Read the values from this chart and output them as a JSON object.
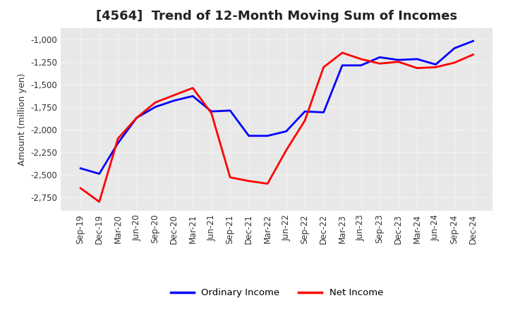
{
  "title": "[4564]  Trend of 12-Month Moving Sum of Incomes",
  "ylabel": "Amount (million yen)",
  "x_labels": [
    "Sep-19",
    "Dec-19",
    "Mar-20",
    "Jun-20",
    "Sep-20",
    "Dec-20",
    "Mar-21",
    "Jun-21",
    "Sep-21",
    "Dec-21",
    "Mar-22",
    "Jun-22",
    "Sep-22",
    "Dec-22",
    "Mar-23",
    "Jun-23",
    "Sep-23",
    "Dec-23",
    "Mar-24",
    "Jun-24",
    "Sep-24",
    "Dec-24"
  ],
  "ordinary_income": [
    -2430,
    -2490,
    -2150,
    -1870,
    -1750,
    -1680,
    -1630,
    -1800,
    -1790,
    -2070,
    -2070,
    -2020,
    -1800,
    -1810,
    -1290,
    -1290,
    -1200,
    -1230,
    -1220,
    -1280,
    -1100,
    -1020
  ],
  "net_income": [
    -2650,
    -2800,
    -2100,
    -1870,
    -1700,
    -1620,
    -1540,
    -1820,
    -2530,
    -2570,
    -2600,
    -2230,
    -1900,
    -1310,
    -1150,
    -1220,
    -1270,
    -1250,
    -1320,
    -1310,
    -1260,
    -1170
  ],
  "ordinary_color": "#0000FF",
  "net_color": "#FF0000",
  "line_width": 2.0,
  "background_color": "#FFFFFF",
  "plot_bg_color": "#E8E8E8",
  "grid_color": "#FFFFFF",
  "ylim_min": -2900,
  "ylim_max": -875,
  "yticks": [
    -2750,
    -2500,
    -2250,
    -2000,
    -1750,
    -1500,
    -1250,
    -1000
  ],
  "title_fontsize": 13,
  "tick_fontsize": 8.5,
  "legend_labels": [
    "Ordinary Income",
    "Net Income"
  ]
}
